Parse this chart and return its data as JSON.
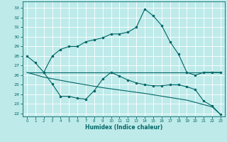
{
  "xlabel": "Humidex (Indice chaleur)",
  "bg_color": "#beeaea",
  "line_color": "#006666",
  "grid_color": "#ffffff",
  "xlim": [
    -0.5,
    23.5
  ],
  "ylim": [
    21.7,
    33.7
  ],
  "yticks": [
    22,
    23,
    24,
    25,
    26,
    27,
    28,
    29,
    30,
    31,
    32,
    33
  ],
  "xticks": [
    0,
    1,
    2,
    3,
    4,
    5,
    6,
    7,
    8,
    9,
    10,
    11,
    12,
    13,
    14,
    15,
    16,
    17,
    18,
    19,
    20,
    21,
    22,
    23
  ],
  "series1_x": [
    0,
    1,
    2,
    3,
    4,
    5,
    6,
    7,
    8,
    9,
    10,
    11,
    12,
    13,
    14,
    15,
    16,
    17,
    18,
    19,
    20,
    21,
    22,
    23
  ],
  "series1_y": [
    28,
    27.3,
    26.3,
    28.0,
    28.7,
    29.0,
    29.0,
    29.5,
    29.7,
    29.9,
    30.3,
    30.3,
    30.5,
    31.0,
    32.9,
    32.2,
    31.2,
    29.5,
    28.2,
    26.3,
    26.0,
    26.3,
    26.3,
    26.3
  ],
  "series2_x": [
    0,
    23
  ],
  "series2_y": [
    26.3,
    26.3
  ],
  "series3_x": [
    2,
    3,
    4,
    5,
    6,
    7,
    8,
    9,
    10,
    11,
    12,
    13,
    14,
    15,
    16,
    17,
    18,
    19,
    20,
    21,
    22,
    23
  ],
  "series3_y": [
    26.3,
    25.1,
    23.8,
    23.8,
    23.6,
    23.5,
    24.4,
    25.6,
    26.3,
    25.9,
    25.5,
    25.2,
    25.0,
    24.9,
    24.9,
    25.0,
    25.0,
    24.8,
    24.5,
    23.3,
    22.8,
    21.9
  ],
  "series4_x": [
    0,
    2,
    5,
    9,
    14,
    19,
    22,
    23
  ],
  "series4_y": [
    26.3,
    25.8,
    25.3,
    24.7,
    24.1,
    23.4,
    22.7,
    21.9
  ]
}
